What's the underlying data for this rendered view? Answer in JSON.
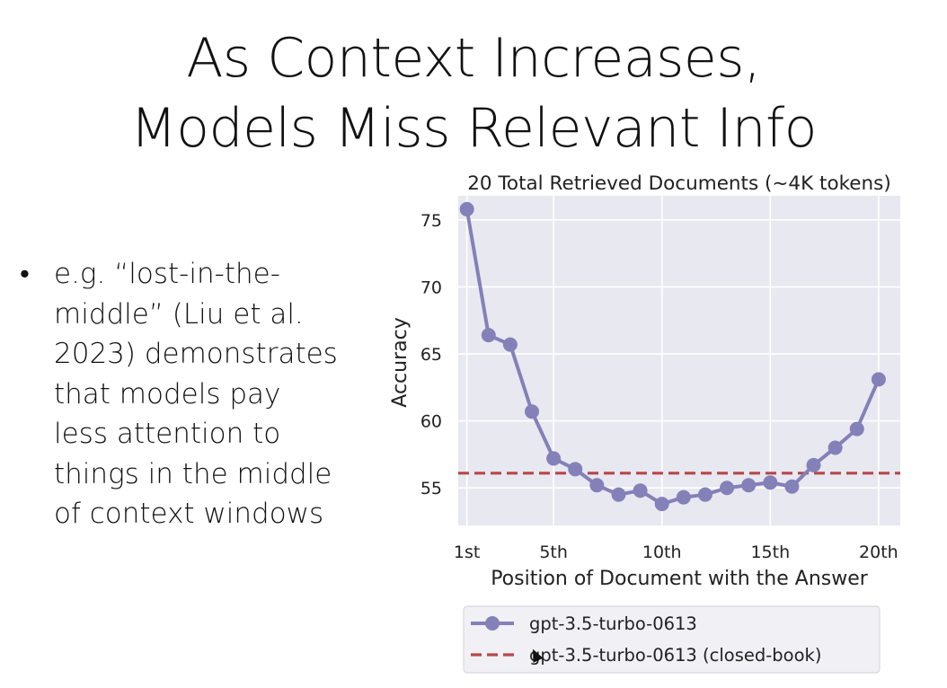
{
  "slide": {
    "title_lines": [
      "As Context Increases,",
      "Models Miss Relevant Info"
    ],
    "bullet_lines": [
      "e.g. “lost-in-the-",
      "middle” (Liu et al.",
      "2023) demonstrates",
      "that models pay",
      "less attention to",
      "things in the middle",
      "of context windows"
    ]
  },
  "colors": {
    "plot_background": "#e8e8f0",
    "grid": "#ffffff",
    "series_main": "#8480b8",
    "series_closed_book": "#b5474a",
    "text": "#222222"
  },
  "chart_data": {
    "type": "line",
    "title": "20 Total Retrieved Documents (~4K tokens)",
    "xlabel": "Position of Document with the Answer",
    "ylabel": "Accuracy",
    "x": [
      1,
      2,
      3,
      4,
      5,
      6,
      7,
      8,
      9,
      10,
      11,
      12,
      13,
      14,
      15,
      16,
      17,
      18,
      19,
      20
    ],
    "xlim": [
      0.6,
      21.0
    ],
    "ylim": [
      52.2,
      76.8
    ],
    "x_ticks": [
      1,
      5,
      10,
      15,
      20
    ],
    "x_tick_labels": [
      "1st",
      "5th",
      "10th",
      "15th",
      "20th"
    ],
    "y_ticks": [
      55,
      60,
      65,
      70,
      75
    ],
    "grid": true,
    "legend_position": "bottom",
    "series": [
      {
        "name": "gpt-3.5-turbo-0613",
        "style": "line-with-markers",
        "values": [
          75.8,
          66.4,
          65.7,
          60.7,
          57.2,
          56.4,
          55.2,
          54.5,
          54.8,
          53.8,
          54.3,
          54.5,
          55.0,
          55.2,
          55.4,
          55.1,
          56.7,
          58.0,
          59.4,
          63.1
        ]
      },
      {
        "name": "gpt-3.5-turbo-0613 (closed-book)",
        "style": "dashed-constant",
        "value": 56.1
      }
    ]
  }
}
